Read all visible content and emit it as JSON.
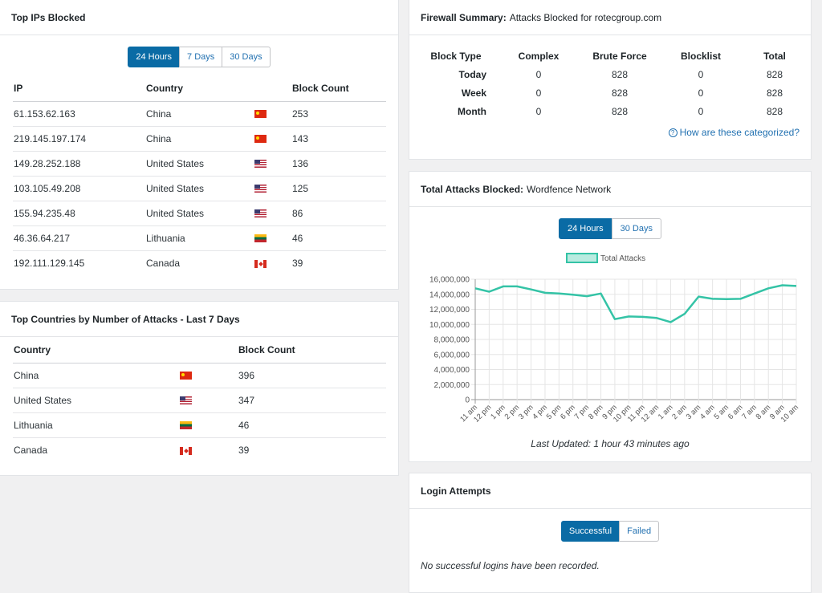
{
  "top_ips": {
    "title": "Top IPs Blocked",
    "tabs": [
      "24 Hours",
      "7 Days",
      "30 Days"
    ],
    "active_tab": 0,
    "columns": [
      "IP",
      "Country",
      "Block Count"
    ],
    "rows": [
      {
        "ip": "61.153.62.163",
        "country": "China",
        "flag": "cn",
        "count": "253"
      },
      {
        "ip": "219.145.197.174",
        "country": "China",
        "flag": "cn",
        "count": "143"
      },
      {
        "ip": "149.28.252.188",
        "country": "United States",
        "flag": "us",
        "count": "136"
      },
      {
        "ip": "103.105.49.208",
        "country": "United States",
        "flag": "us",
        "count": "125"
      },
      {
        "ip": "155.94.235.48",
        "country": "United States",
        "flag": "us",
        "count": "86"
      },
      {
        "ip": "46.36.64.217",
        "country": "Lithuania",
        "flag": "lt",
        "count": "46"
      },
      {
        "ip": "192.111.129.145",
        "country": "Canada",
        "flag": "ca",
        "count": "39"
      }
    ]
  },
  "top_countries": {
    "title": "Top Countries by Number of Attacks - Last 7 Days",
    "columns": [
      "Country",
      "Block Count"
    ],
    "rows": [
      {
        "country": "China",
        "flag": "cn",
        "count": "396"
      },
      {
        "country": "United States",
        "flag": "us",
        "count": "347"
      },
      {
        "country": "Lithuania",
        "flag": "lt",
        "count": "46"
      },
      {
        "country": "Canada",
        "flag": "ca",
        "count": "39"
      }
    ]
  },
  "firewall": {
    "title": "Firewall Summary:",
    "subtitle": "Attacks Blocked for rotecgroup.com",
    "columns": [
      "Block Type",
      "Complex",
      "Brute Force",
      "Blocklist",
      "Total"
    ],
    "rows": [
      {
        "label": "Today",
        "values": [
          "0",
          "828",
          "0",
          "828"
        ]
      },
      {
        "label": "Week",
        "values": [
          "0",
          "828",
          "0",
          "828"
        ]
      },
      {
        "label": "Month",
        "values": [
          "0",
          "828",
          "0",
          "828"
        ]
      }
    ],
    "help_link": "How are these categorized?"
  },
  "total_attacks": {
    "title": "Total Attacks Blocked:",
    "subtitle": "Wordfence Network",
    "tabs": [
      "24 Hours",
      "30 Days"
    ],
    "active_tab": 0,
    "last_updated": "Last Updated: 1 hour 43 minutes ago",
    "line_color": "#34c3a6"
  },
  "chart_data": {
    "type": "line",
    "x": [
      "11 am",
      "12 pm",
      "1 pm",
      "2 pm",
      "3 pm",
      "4 pm",
      "5 pm",
      "6 pm",
      "7 pm",
      "8 pm",
      "9 pm",
      "10 pm",
      "11 pm",
      "12 am",
      "1 am",
      "2 am",
      "3 am",
      "4 am",
      "5 am",
      "6 am",
      "7 am",
      "8 am",
      "9 am",
      "10 am"
    ],
    "series": [
      {
        "name": "Total Attacks",
        "values": [
          14800000,
          14350000,
          15050000,
          15050000,
          14650000,
          14200000,
          14100000,
          13950000,
          13750000,
          14100000,
          10700000,
          11050000,
          11000000,
          10850000,
          10300000,
          11400000,
          13700000,
          13400000,
          13350000,
          13400000,
          14100000,
          14800000,
          15200000,
          15100000
        ]
      }
    ],
    "yticks": [
      "0",
      "2,000,000",
      "4,000,000",
      "6,000,000",
      "8,000,000",
      "10,000,000",
      "12,000,000",
      "14,000,000",
      "16,000,000"
    ],
    "ylim": [
      0,
      16000000
    ],
    "grid": true,
    "legend": "top"
  },
  "login": {
    "title": "Login Attempts",
    "tabs": [
      "Successful",
      "Failed"
    ],
    "active_tab": 0,
    "empty_text": "No successful logins have been recorded."
  }
}
